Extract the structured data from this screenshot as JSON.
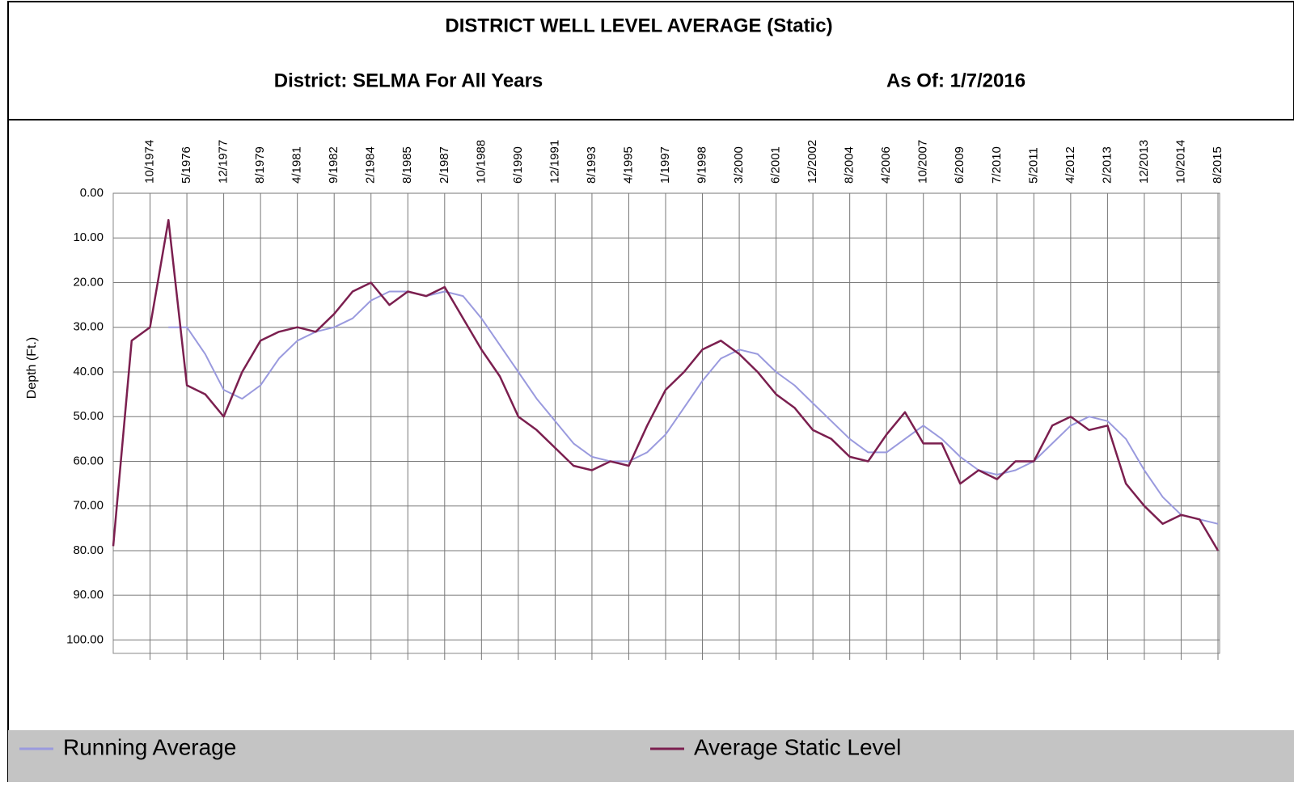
{
  "chart_data": {
    "type": "line",
    "title": "DISTRICT WELL LEVEL AVERAGE (Static)",
    "subtitle": "District: SELMA For All Years",
    "annotations": [
      "As Of: 1/7/2016"
    ],
    "ylabel": "Depth (Ft.)",
    "y_reversed": true,
    "grid": true,
    "ylim": [
      0,
      103
    ],
    "yticks": [
      {
        "value": 0,
        "label": "0.00"
      },
      {
        "value": 10,
        "label": "10.00"
      },
      {
        "value": 20,
        "label": "20.00"
      },
      {
        "value": 30,
        "label": "30.00"
      },
      {
        "value": 40,
        "label": "40.00"
      },
      {
        "value": 50,
        "label": "50.00"
      },
      {
        "value": 60,
        "label": "60.00"
      },
      {
        "value": 70,
        "label": "70.00"
      },
      {
        "value": 80,
        "label": "80.00"
      },
      {
        "value": 90,
        "label": "90.00"
      },
      {
        "value": 100,
        "label": "100.00"
      }
    ],
    "categories": [
      null,
      null,
      "10/1974",
      null,
      "5/1976",
      null,
      "12/1977",
      null,
      "8/1979",
      null,
      "4/1981",
      null,
      "9/1982",
      null,
      "2/1984",
      null,
      "8/1985",
      null,
      "2/1987",
      null,
      "10/1988",
      null,
      "6/1990",
      null,
      "12/1991",
      null,
      "8/1993",
      null,
      "4/1995",
      null,
      "1/1997",
      null,
      "9/1998",
      null,
      "3/2000",
      null,
      "6/2001",
      null,
      "12/2002",
      null,
      "8/2004",
      null,
      "4/2006",
      null,
      "10/2007",
      null,
      "6/2009",
      null,
      "7/2010",
      null,
      "5/2011",
      null,
      "4/2012",
      null,
      "2/2013",
      null,
      "12/2013",
      null,
      "10/2014",
      null,
      "8/2015"
    ],
    "series": [
      {
        "name": "Running Average",
        "color": "#9a9ade",
        "values": [
          null,
          null,
          null,
          30,
          30,
          36,
          44,
          46,
          43,
          37,
          33,
          31,
          30,
          28,
          24,
          22,
          22,
          23,
          22,
          23,
          28,
          34,
          40,
          46,
          51,
          56,
          59,
          60,
          60,
          58,
          54,
          48,
          42,
          37,
          35,
          36,
          40,
          43,
          47,
          51,
          55,
          58,
          58,
          55,
          52,
          55,
          59,
          62,
          63,
          62,
          60,
          56,
          52,
          50,
          51,
          55,
          62,
          68,
          72,
          73,
          74
        ]
      },
      {
        "name": "Average Static Level",
        "color": "#7b1f4f",
        "values": [
          79,
          33,
          30,
          6,
          43,
          45,
          50,
          40,
          33,
          31,
          30,
          31,
          27,
          22,
          20,
          25,
          22,
          23,
          21,
          28,
          35,
          41,
          50,
          53,
          57,
          61,
          62,
          60,
          61,
          52,
          44,
          40,
          35,
          33,
          36,
          40,
          45,
          48,
          53,
          55,
          59,
          60,
          54,
          49,
          56,
          56,
          65,
          62,
          64,
          60,
          60,
          52,
          50,
          53,
          52,
          65,
          70,
          74,
          72,
          73,
          80
        ]
      }
    ]
  }
}
